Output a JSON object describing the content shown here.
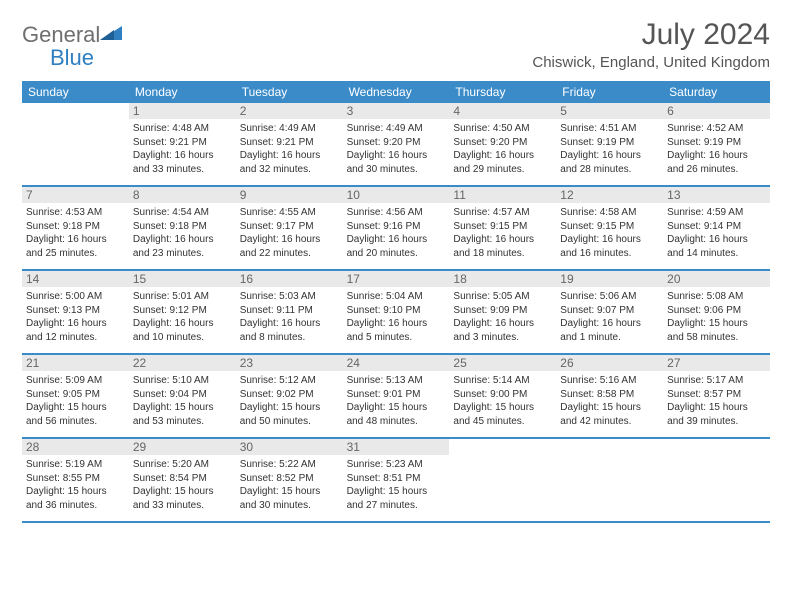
{
  "logo": {
    "word1": "General",
    "word2": "Blue"
  },
  "title": "July 2024",
  "location": "Chiswick, England, United Kingdom",
  "colors": {
    "header_bg": "#3b8bc9",
    "header_text": "#ffffff",
    "daynum_bg": "#e9e9e9",
    "daynum_text": "#666666",
    "border": "#3b8bc9",
    "logo_gray": "#6f6f6f",
    "logo_blue": "#2f7fc1",
    "title_color": "#555555",
    "body_text": "#333333",
    "page_bg": "#ffffff"
  },
  "typography": {
    "title_fontsize": 30,
    "location_fontsize": 15,
    "dow_fontsize": 12,
    "daynum_fontsize": 12,
    "info_fontsize": 10,
    "logo_fontsize": 22
  },
  "dow": [
    "Sunday",
    "Monday",
    "Tuesday",
    "Wednesday",
    "Thursday",
    "Friday",
    "Saturday"
  ],
  "weeks": [
    [
      null,
      {
        "n": "1",
        "sr": "Sunrise: 4:48 AM",
        "ss": "Sunset: 9:21 PM",
        "d1": "Daylight: 16 hours",
        "d2": "and 33 minutes."
      },
      {
        "n": "2",
        "sr": "Sunrise: 4:49 AM",
        "ss": "Sunset: 9:21 PM",
        "d1": "Daylight: 16 hours",
        "d2": "and 32 minutes."
      },
      {
        "n": "3",
        "sr": "Sunrise: 4:49 AM",
        "ss": "Sunset: 9:20 PM",
        "d1": "Daylight: 16 hours",
        "d2": "and 30 minutes."
      },
      {
        "n": "4",
        "sr": "Sunrise: 4:50 AM",
        "ss": "Sunset: 9:20 PM",
        "d1": "Daylight: 16 hours",
        "d2": "and 29 minutes."
      },
      {
        "n": "5",
        "sr": "Sunrise: 4:51 AM",
        "ss": "Sunset: 9:19 PM",
        "d1": "Daylight: 16 hours",
        "d2": "and 28 minutes."
      },
      {
        "n": "6",
        "sr": "Sunrise: 4:52 AM",
        "ss": "Sunset: 9:19 PM",
        "d1": "Daylight: 16 hours",
        "d2": "and 26 minutes."
      }
    ],
    [
      {
        "n": "7",
        "sr": "Sunrise: 4:53 AM",
        "ss": "Sunset: 9:18 PM",
        "d1": "Daylight: 16 hours",
        "d2": "and 25 minutes."
      },
      {
        "n": "8",
        "sr": "Sunrise: 4:54 AM",
        "ss": "Sunset: 9:18 PM",
        "d1": "Daylight: 16 hours",
        "d2": "and 23 minutes."
      },
      {
        "n": "9",
        "sr": "Sunrise: 4:55 AM",
        "ss": "Sunset: 9:17 PM",
        "d1": "Daylight: 16 hours",
        "d2": "and 22 minutes."
      },
      {
        "n": "10",
        "sr": "Sunrise: 4:56 AM",
        "ss": "Sunset: 9:16 PM",
        "d1": "Daylight: 16 hours",
        "d2": "and 20 minutes."
      },
      {
        "n": "11",
        "sr": "Sunrise: 4:57 AM",
        "ss": "Sunset: 9:15 PM",
        "d1": "Daylight: 16 hours",
        "d2": "and 18 minutes."
      },
      {
        "n": "12",
        "sr": "Sunrise: 4:58 AM",
        "ss": "Sunset: 9:15 PM",
        "d1": "Daylight: 16 hours",
        "d2": "and 16 minutes."
      },
      {
        "n": "13",
        "sr": "Sunrise: 4:59 AM",
        "ss": "Sunset: 9:14 PM",
        "d1": "Daylight: 16 hours",
        "d2": "and 14 minutes."
      }
    ],
    [
      {
        "n": "14",
        "sr": "Sunrise: 5:00 AM",
        "ss": "Sunset: 9:13 PM",
        "d1": "Daylight: 16 hours",
        "d2": "and 12 minutes."
      },
      {
        "n": "15",
        "sr": "Sunrise: 5:01 AM",
        "ss": "Sunset: 9:12 PM",
        "d1": "Daylight: 16 hours",
        "d2": "and 10 minutes."
      },
      {
        "n": "16",
        "sr": "Sunrise: 5:03 AM",
        "ss": "Sunset: 9:11 PM",
        "d1": "Daylight: 16 hours",
        "d2": "and 8 minutes."
      },
      {
        "n": "17",
        "sr": "Sunrise: 5:04 AM",
        "ss": "Sunset: 9:10 PM",
        "d1": "Daylight: 16 hours",
        "d2": "and 5 minutes."
      },
      {
        "n": "18",
        "sr": "Sunrise: 5:05 AM",
        "ss": "Sunset: 9:09 PM",
        "d1": "Daylight: 16 hours",
        "d2": "and 3 minutes."
      },
      {
        "n": "19",
        "sr": "Sunrise: 5:06 AM",
        "ss": "Sunset: 9:07 PM",
        "d1": "Daylight: 16 hours",
        "d2": "and 1 minute."
      },
      {
        "n": "20",
        "sr": "Sunrise: 5:08 AM",
        "ss": "Sunset: 9:06 PM",
        "d1": "Daylight: 15 hours",
        "d2": "and 58 minutes."
      }
    ],
    [
      {
        "n": "21",
        "sr": "Sunrise: 5:09 AM",
        "ss": "Sunset: 9:05 PM",
        "d1": "Daylight: 15 hours",
        "d2": "and 56 minutes."
      },
      {
        "n": "22",
        "sr": "Sunrise: 5:10 AM",
        "ss": "Sunset: 9:04 PM",
        "d1": "Daylight: 15 hours",
        "d2": "and 53 minutes."
      },
      {
        "n": "23",
        "sr": "Sunrise: 5:12 AM",
        "ss": "Sunset: 9:02 PM",
        "d1": "Daylight: 15 hours",
        "d2": "and 50 minutes."
      },
      {
        "n": "24",
        "sr": "Sunrise: 5:13 AM",
        "ss": "Sunset: 9:01 PM",
        "d1": "Daylight: 15 hours",
        "d2": "and 48 minutes."
      },
      {
        "n": "25",
        "sr": "Sunrise: 5:14 AM",
        "ss": "Sunset: 9:00 PM",
        "d1": "Daylight: 15 hours",
        "d2": "and 45 minutes."
      },
      {
        "n": "26",
        "sr": "Sunrise: 5:16 AM",
        "ss": "Sunset: 8:58 PM",
        "d1": "Daylight: 15 hours",
        "d2": "and 42 minutes."
      },
      {
        "n": "27",
        "sr": "Sunrise: 5:17 AM",
        "ss": "Sunset: 8:57 PM",
        "d1": "Daylight: 15 hours",
        "d2": "and 39 minutes."
      }
    ],
    [
      {
        "n": "28",
        "sr": "Sunrise: 5:19 AM",
        "ss": "Sunset: 8:55 PM",
        "d1": "Daylight: 15 hours",
        "d2": "and 36 minutes."
      },
      {
        "n": "29",
        "sr": "Sunrise: 5:20 AM",
        "ss": "Sunset: 8:54 PM",
        "d1": "Daylight: 15 hours",
        "d2": "and 33 minutes."
      },
      {
        "n": "30",
        "sr": "Sunrise: 5:22 AM",
        "ss": "Sunset: 8:52 PM",
        "d1": "Daylight: 15 hours",
        "d2": "and 30 minutes."
      },
      {
        "n": "31",
        "sr": "Sunrise: 5:23 AM",
        "ss": "Sunset: 8:51 PM",
        "d1": "Daylight: 15 hours",
        "d2": "and 27 minutes."
      },
      null,
      null,
      null
    ]
  ]
}
